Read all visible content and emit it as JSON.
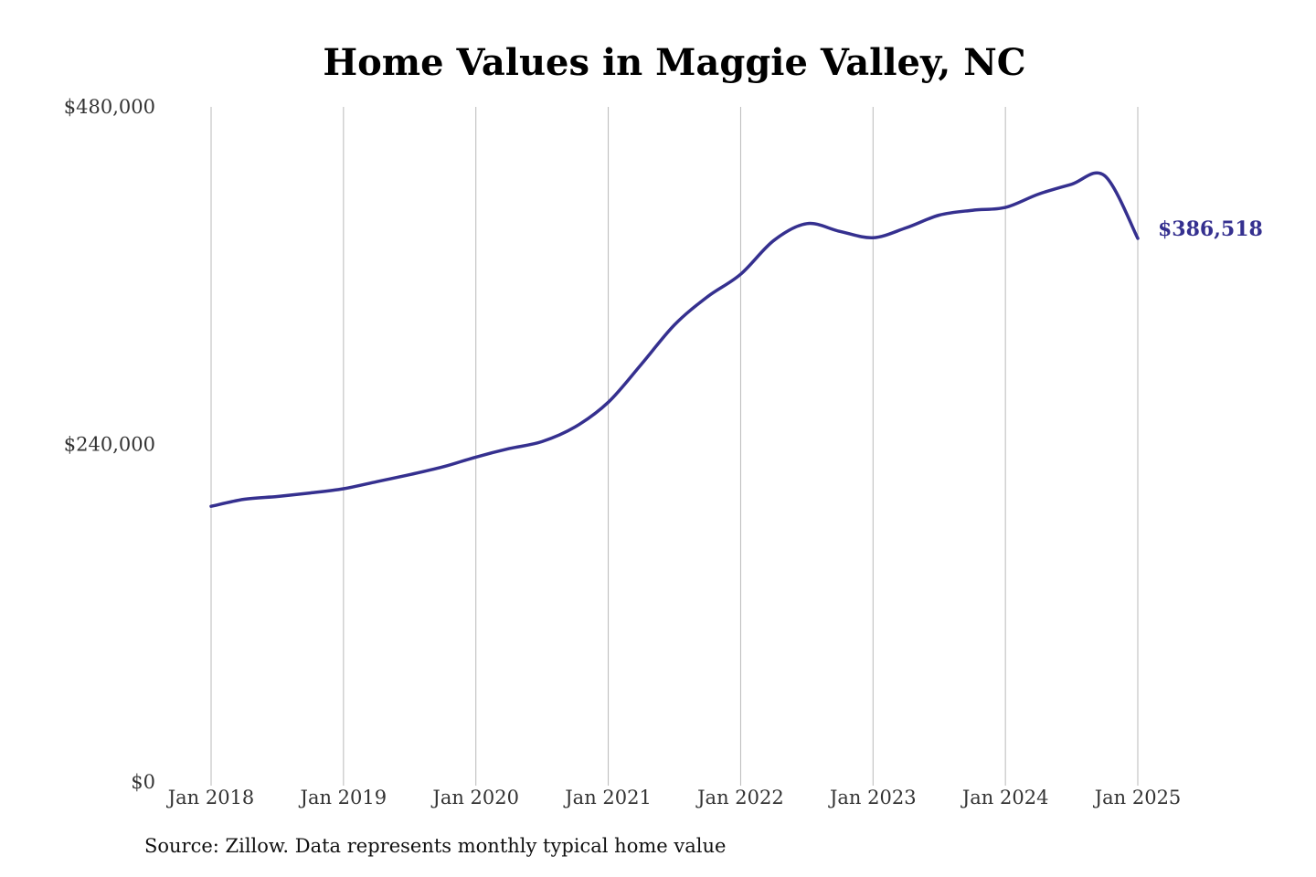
{
  "colors": {
    "line": "#35308f",
    "grid": "#b9b9b9",
    "tick_text": "#333333",
    "title_text": "#000000"
  },
  "source_note": "Source: Zillow. Data represents monthly typical home value",
  "chart_data": {
    "type": "line",
    "title": "Home Values in Maggie Valley, NC",
    "xlabel": "",
    "ylabel": "",
    "ylim": [
      0,
      480000
    ],
    "xlim": [
      "2018-01",
      "2025-01"
    ],
    "x_ticks": [
      "Jan 2018",
      "Jan 2019",
      "Jan 2020",
      "Jan 2021",
      "Jan 2022",
      "Jan 2023",
      "Jan 2024",
      "Jan 2025"
    ],
    "y_ticks": [
      {
        "value": 0,
        "label": "$0"
      },
      {
        "value": 240000,
        "label": "$240,000"
      },
      {
        "value": 480000,
        "label": "$480,000"
      }
    ],
    "grid": "vertical",
    "end_label": "$386,518",
    "series": [
      {
        "x": [
          "2018-01",
          "2018-04",
          "2018-07",
          "2018-10",
          "2019-01",
          "2019-04",
          "2019-07",
          "2019-10",
          "2020-01",
          "2020-04",
          "2020-07",
          "2020-10",
          "2021-01",
          "2021-04",
          "2021-07",
          "2021-10",
          "2022-01",
          "2022-04",
          "2022-07",
          "2022-10",
          "2023-01",
          "2023-04",
          "2023-07",
          "2023-10",
          "2024-01",
          "2024-04",
          "2024-07",
          "2024-10",
          "2025-01"
        ],
        "values": [
          196000,
          201000,
          203000,
          205500,
          208500,
          213500,
          218500,
          224000,
          231000,
          237000,
          242000,
          252500,
          270000,
          297000,
          325000,
          345000,
          361000,
          385000,
          397000,
          391500,
          387000,
          394000,
          403000,
          406500,
          408500,
          418000,
          425000,
          431000,
          386518
        ]
      }
    ]
  }
}
